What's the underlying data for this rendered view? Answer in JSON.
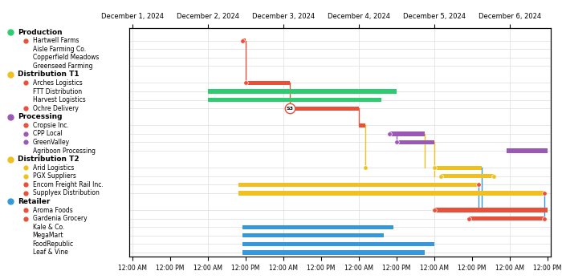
{
  "chart_data": {
    "type": "gantt",
    "grid": true,
    "xlim": [
      -0.042,
      5.542
    ],
    "xticks": [
      {
        "value": 0.0,
        "label": "12:00 AM"
      },
      {
        "value": 0.5,
        "label": "12:00 PM"
      },
      {
        "value": 1.0,
        "label": "12:00 AM"
      },
      {
        "value": 1.5,
        "label": "12:00 PM"
      },
      {
        "value": 2.0,
        "label": "12:00 AM"
      },
      {
        "value": 2.5,
        "label": "12:00 PM"
      },
      {
        "value": 3.0,
        "label": "12:00 AM"
      },
      {
        "value": 3.5,
        "label": "12:00 PM"
      },
      {
        "value": 4.0,
        "label": "12:00 AM"
      },
      {
        "value": 4.5,
        "label": "12:00 PM"
      },
      {
        "value": 5.0,
        "label": "12:00 AM"
      },
      {
        "value": 5.5,
        "label": "12:00 PM"
      }
    ],
    "x2ticks": [
      {
        "value": 0.0,
        "label": "December 1, 2024"
      },
      {
        "value": 1.0,
        "label": "December 2, 2024"
      },
      {
        "value": 2.0,
        "label": "December 3, 2024"
      },
      {
        "value": 3.0,
        "label": "December 4, 2024"
      },
      {
        "value": 4.0,
        "label": "December 5, 2024"
      },
      {
        "value": 5.0,
        "label": "December 6, 2024"
      }
    ],
    "groups": [
      {
        "name": "Production",
        "color": "#2ecc71",
        "items": [
          {
            "name": "Hartwell Farms",
            "dot_color": "#e8503a",
            "color": "#e8503a",
            "start": 1.4583,
            "end": 1.5
          },
          {
            "name": "Aisle Farming Co.",
            "dot_color": null,
            "color": null,
            "start": null,
            "end": null
          },
          {
            "name": "Copperfield Meadows",
            "dot_color": null,
            "color": null,
            "start": null,
            "end": null
          },
          {
            "name": "Greenseed Farming",
            "dot_color": null,
            "color": null,
            "start": null,
            "end": null
          }
        ]
      },
      {
        "name": "Distribution T1",
        "color": "#f0c020",
        "items": [
          {
            "name": "Arches Logistics",
            "dot_color": "#e8503a",
            "color": "#e8503a",
            "start": 1.5,
            "end": 2.0833
          },
          {
            "name": "FTT Distribution",
            "dot_color": null,
            "color": "#2ecc71",
            "start": 1.0,
            "end": 3.5
          },
          {
            "name": "Harvest Logistics",
            "dot_color": null,
            "color": "#2ecc71",
            "start": 1.0,
            "end": 3.3
          },
          {
            "name": "Ochre Delivery",
            "dot_color": "#e8503a",
            "color": "#e8503a",
            "start": 2.0833,
            "end": 3.0
          }
        ]
      },
      {
        "name": "Processing",
        "color": "#9b59b6",
        "items": [
          {
            "name": "Cropsie Inc.",
            "dot_color": "#e8503a",
            "color": "#e8503a",
            "start": 3.0,
            "end": 3.083
          },
          {
            "name": "CPP Local",
            "dot_color": "#9b59b6",
            "color": "#9b59b6",
            "start": 3.4,
            "end": 3.875
          },
          {
            "name": "GreenValley",
            "dot_color": "#9b59b6",
            "color": "#9b59b6",
            "start": 3.5,
            "end": 4.0
          },
          {
            "name": "Agriboon Processing",
            "dot_color": null,
            "color": "#9b59b6",
            "start": 4.958,
            "end": 5.5
          }
        ]
      },
      {
        "name": "Distribution T2",
        "color": "#f0c020",
        "items": [
          {
            "name": "Arid Logistics",
            "dot_color": "#f0c020",
            "color": "#f0c020",
            "start": 4.0,
            "end": 4.625
          },
          {
            "name": "PGX Suppliers",
            "dot_color": "#f0c020",
            "color": "#f0c020",
            "start": 4.08,
            "end": 4.792
          },
          {
            "name": "Encom Freight Rail Inc.",
            "dot_color": "#e8503a",
            "color": "#f0c020",
            "start": 1.4,
            "end": 4.583
          },
          {
            "name": "Supplyex Distribution",
            "dot_color": "#e8503a",
            "color": "#f0c020",
            "start": 1.4,
            "end": 5.458
          }
        ]
      },
      {
        "name": "Retailer",
        "color": "#3498db",
        "items": [
          {
            "name": "Aroma Foods",
            "dot_color": "#e8503a",
            "color": "#e8503a",
            "start": 4.0,
            "end": 5.5
          },
          {
            "name": "Gardenia Grocery",
            "dot_color": "#e8503a",
            "color": "#e8503a",
            "start": 4.458,
            "end": 5.458
          },
          {
            "name": "Kale & Co.",
            "dot_color": null,
            "color": "#3498db",
            "start": 1.458,
            "end": 3.458
          },
          {
            "name": "MegaMart",
            "dot_color": null,
            "color": "#3498db",
            "start": 1.458,
            "end": 3.333
          },
          {
            "name": "FoodRepublic",
            "dot_color": null,
            "color": "#3498db",
            "start": 1.458,
            "end": 4.0
          },
          {
            "name": "Leaf & Vine",
            "dot_color": null,
            "color": "#3498db",
            "start": 1.458,
            "end": 3.875
          }
        ]
      }
    ],
    "connectors": [
      {
        "x1": 1.5,
        "from": "Hartwell Farms",
        "x2": 1.5,
        "to": "Arches Logistics",
        "color": "#e8503a"
      },
      {
        "x1": 2.0833,
        "from": "Arches Logistics",
        "x2": 2.0833,
        "to": "Ochre Delivery",
        "color": "#e8503a"
      },
      {
        "x1": 3.0,
        "from": "Ochre Delivery",
        "x2": 3.0,
        "to": "Cropsie Inc.",
        "color": "#e8503a"
      },
      {
        "x1": 3.083,
        "from": "Cropsie Inc.",
        "x2": 3.083,
        "to": "Arid Logistics",
        "color": "#f0c020"
      },
      {
        "x1": 4.625,
        "from": "Arid Logistics",
        "x2": 4.625,
        "to": "Aroma Foods",
        "color": "#3498db"
      },
      {
        "x1": 3.5,
        "from": "CPP Local",
        "x2": 3.5,
        "to": "GreenValley",
        "color": "#9b59b6"
      },
      {
        "x1": 3.875,
        "from": "CPP Local",
        "x2": 3.875,
        "to": "Arid Logistics",
        "color": "#f0c020"
      },
      {
        "x1": 4.0,
        "from": "GreenValley",
        "x2": 4.0,
        "to": "PGX Suppliers",
        "color": "#f0c020"
      },
      {
        "x1": 4.583,
        "from": "Encom Freight Rail Inc.",
        "x2": 4.583,
        "to": "Aroma Foods",
        "color": "#3498db"
      },
      {
        "x1": 5.458,
        "from": "Supplyex Distribution",
        "x2": 5.458,
        "to": "Gardenia Grocery",
        "color": "#3498db"
      }
    ],
    "point_markers": [
      {
        "x": 1.4583,
        "row": "Hartwell Farms",
        "color": "#e8503a"
      },
      {
        "x": 1.5,
        "row": "Arches Logistics",
        "color": "#e8503a"
      },
      {
        "x": 2.0833,
        "row": "Ochre Delivery",
        "color": "#e8503a"
      },
      {
        "x": 3.083,
        "row": "Arid Logistics",
        "color": "#f0c020"
      },
      {
        "x": 3.4,
        "row": "CPP Local",
        "color": "#9b59b6"
      },
      {
        "x": 3.5,
        "row": "GreenValley",
        "color": "#9b59b6"
      },
      {
        "x": 4.0,
        "row": "Arid Logistics",
        "color": "#f0c020"
      },
      {
        "x": 4.08,
        "row": "PGX Suppliers",
        "color": "#f0c020"
      },
      {
        "x": 4.0,
        "row": "Aroma Foods",
        "color": "#e8503a"
      },
      {
        "x": 4.458,
        "row": "Gardenia Grocery",
        "color": "#e8503a"
      },
      {
        "x": 4.583,
        "row": "Encom Freight Rail Inc.",
        "color": "#e8503a"
      },
      {
        "x": 5.458,
        "row": "Supplyex Distribution",
        "color": "#e8503a"
      },
      {
        "x": 4.792,
        "row": "PGX Suppliers",
        "color": "#f0c020"
      },
      {
        "x": 5.458,
        "row": "Gardenia Grocery",
        "color": "#e8503a"
      }
    ],
    "annotation": {
      "text": "S3",
      "x": 2.0833,
      "row": "Ochre Delivery",
      "color": "#e8503a"
    }
  }
}
